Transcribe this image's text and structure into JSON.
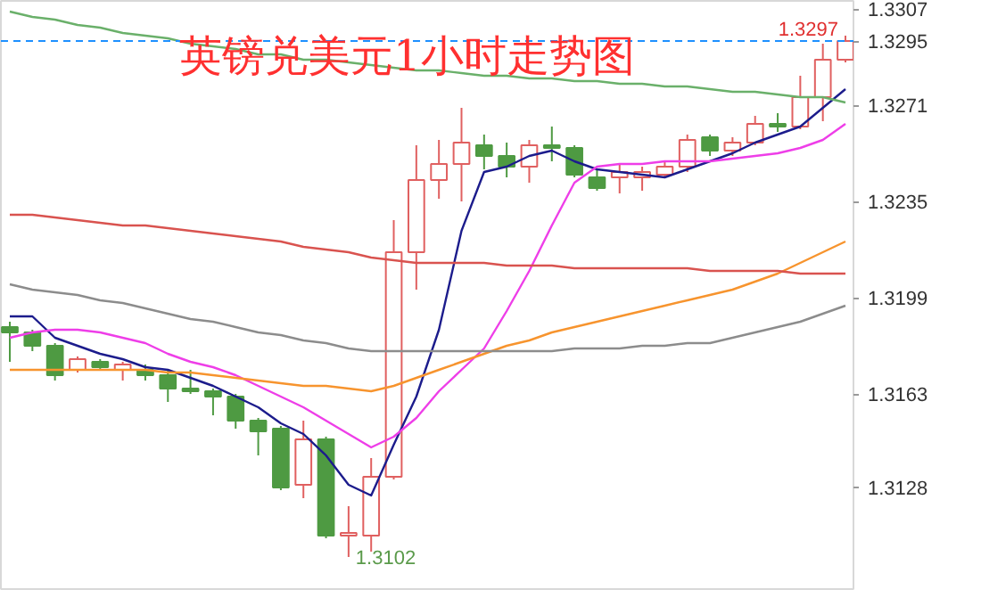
{
  "chart_data": {
    "type": "candlestick",
    "title": "英镑兑美元1小时走势图",
    "categories": [
      null,
      null,
      null,
      null,
      null,
      null,
      null,
      null,
      null,
      null,
      null,
      null,
      null,
      null,
      null,
      null,
      null,
      null,
      null,
      null,
      null,
      null,
      null,
      null,
      null,
      null,
      null,
      null,
      null,
      null,
      null,
      null,
      null,
      null,
      null,
      null,
      null,
      null
    ],
    "ohlc": [
      [
        1.3188,
        1.319,
        1.3175,
        1.3186
      ],
      [
        1.3186,
        1.3187,
        1.3179,
        1.3181
      ],
      [
        1.3181,
        1.3182,
        1.3168,
        1.317
      ],
      [
        1.3172,
        1.3177,
        1.3171,
        1.3176
      ],
      [
        1.3175,
        1.3176,
        1.3172,
        1.3173
      ],
      [
        1.3172,
        1.3175,
        1.3168,
        1.3174
      ],
      [
        1.3172,
        1.3174,
        1.3168,
        1.317
      ],
      [
        1.317,
        1.3172,
        1.316,
        1.3165
      ],
      [
        1.3165,
        1.3172,
        1.3163,
        1.3164
      ],
      [
        1.3164,
        1.3165,
        1.3155,
        1.3162
      ],
      [
        1.3162,
        1.3163,
        1.315,
        1.3153
      ],
      [
        1.3153,
        1.3154,
        1.314,
        1.3149
      ],
      [
        1.315,
        1.3151,
        1.3127,
        1.3128
      ],
      [
        1.3129,
        1.3153,
        1.3124,
        1.3146
      ],
      [
        1.3146,
        1.3147,
        1.3109,
        1.311
      ],
      [
        1.311,
        1.3121,
        1.3102,
        1.3111
      ],
      [
        1.311,
        1.3139,
        1.3104,
        1.3132
      ],
      [
        1.3132,
        1.3228,
        1.3131,
        1.3216
      ],
      [
        1.3216,
        1.3256,
        1.3202,
        1.3243
      ],
      [
        1.3243,
        1.3258,
        1.3236,
        1.3249
      ],
      [
        1.3249,
        1.327,
        1.3235,
        1.3257
      ],
      [
        1.3256,
        1.326,
        1.3247,
        1.3252
      ],
      [
        1.3252,
        1.3257,
        1.3244,
        1.3248
      ],
      [
        1.3248,
        1.3258,
        1.3242,
        1.3256
      ],
      [
        1.3256,
        1.3263,
        1.325,
        1.3255
      ],
      [
        1.3255,
        1.3256,
        1.3244,
        1.3245
      ],
      [
        1.3244,
        1.3247,
        1.3239,
        1.324
      ],
      [
        1.3244,
        1.3249,
        1.3238,
        1.3246
      ],
      [
        1.3244,
        1.3248,
        1.3239,
        1.3246
      ],
      [
        1.3245,
        1.325,
        1.3244,
        1.3248
      ],
      [
        1.3248,
        1.326,
        1.3246,
        1.3258
      ],
      [
        1.3259,
        1.326,
        1.3252,
        1.3254
      ],
      [
        1.3254,
        1.3259,
        1.3252,
        1.3257
      ],
      [
        1.3257,
        1.3267,
        1.3256,
        1.3264
      ],
      [
        1.3264,
        1.3268,
        1.3261,
        1.3263
      ],
      [
        1.3263,
        1.3282,
        1.3262,
        1.3274
      ],
      [
        1.3274,
        1.3294,
        1.3265,
        1.3288
      ],
      [
        1.3288,
        1.3297,
        1.3287,
        1.3295
      ]
    ],
    "colors": [
      "#4e9a42",
      "#4e9a42",
      "#4e9a42",
      "#e06060",
      "#4e9a42",
      "#e06060",
      "#4e9a42",
      "#4e9a42",
      "#4e9a42",
      "#4e9a42",
      "#4e9a42",
      "#4e9a42",
      "#4e9a42",
      "#e06060",
      "#4e9a42",
      "#e06060",
      "#e06060",
      "#e06060",
      "#e06060",
      "#e06060",
      "#e06060",
      "#4e9a42",
      "#4e9a42",
      "#e06060",
      "#4e9a42",
      "#4e9a42",
      "#4e9a42",
      "#e06060",
      "#e06060",
      "#e06060",
      "#e06060",
      "#4e9a42",
      "#e06060",
      "#e06060",
      "#4e9a42",
      "#e06060",
      "#e06060",
      "#e06060"
    ],
    "series": [
      {
        "type": "line",
        "color": "#1c1c8c",
        "values": [
          1.3192,
          1.3192,
          1.3184,
          1.3181,
          1.3178,
          1.3176,
          1.3173,
          1.3172,
          1.3169,
          1.3166,
          1.3162,
          1.3158,
          1.3152,
          1.3148,
          1.314,
          1.3129,
          1.3125,
          1.3144,
          1.3162,
          1.3187,
          1.3224,
          1.3246,
          1.3248,
          1.3252,
          1.3254,
          1.325,
          1.3247,
          1.3246,
          1.3245,
          1.3244,
          1.3247,
          1.325,
          1.3253,
          1.3257,
          1.326,
          1.3263,
          1.327,
          1.3277
        ]
      },
      {
        "type": "line",
        "color": "#ee3ee8",
        "values": [
          1.3184,
          1.3186,
          1.3187,
          1.3187,
          1.3186,
          1.3184,
          1.3182,
          1.3178,
          1.3175,
          1.3173,
          1.317,
          1.3166,
          1.3162,
          1.3158,
          1.3153,
          1.3148,
          1.3143,
          1.3147,
          1.3154,
          1.3164,
          1.3172,
          1.318,
          1.3194,
          1.3209,
          1.3226,
          1.3242,
          1.3248,
          1.3249,
          1.3249,
          1.325,
          1.325,
          1.325,
          1.3251,
          1.3252,
          1.3253,
          1.3255,
          1.3258,
          1.3264
        ]
      },
      {
        "type": "line",
        "color": "#f7942e",
        "values": [
          1.3172,
          1.3172,
          1.3172,
          1.3172,
          1.3172,
          1.3172,
          1.3172,
          1.3171,
          1.3171,
          1.317,
          1.3169,
          1.3168,
          1.3167,
          1.3166,
          1.3166,
          1.3165,
          1.3164,
          1.3166,
          1.3169,
          1.3172,
          1.3175,
          1.3178,
          1.3181,
          1.3183,
          1.3186,
          1.3188,
          1.319,
          1.3192,
          1.3194,
          1.3196,
          1.3198,
          1.32,
          1.3202,
          1.3205,
          1.3208,
          1.3212,
          1.3216,
          1.322
        ]
      },
      {
        "type": "line",
        "color": "#d9534f",
        "values": [
          1.323,
          1.323,
          1.3229,
          1.3228,
          1.3227,
          1.3226,
          1.3226,
          1.3225,
          1.3224,
          1.3223,
          1.3222,
          1.3221,
          1.322,
          1.3218,
          1.3217,
          1.3216,
          1.3214,
          1.3213,
          1.3212,
          1.3212,
          1.3212,
          1.3212,
          1.3211,
          1.3211,
          1.3211,
          1.321,
          1.321,
          1.321,
          1.321,
          1.321,
          1.321,
          1.3209,
          1.3209,
          1.3209,
          1.3209,
          1.3208,
          1.3208,
          1.3208
        ]
      },
      {
        "type": "line",
        "color": "#8c8c8c",
        "values": [
          1.3204,
          1.3202,
          1.3201,
          1.32,
          1.3198,
          1.3197,
          1.3195,
          1.3193,
          1.3191,
          1.319,
          1.3188,
          1.3186,
          1.3185,
          1.3183,
          1.3182,
          1.318,
          1.3179,
          1.3179,
          1.3179,
          1.3179,
          1.3179,
          1.3179,
          1.3179,
          1.3179,
          1.3179,
          1.318,
          1.318,
          1.318,
          1.3181,
          1.3181,
          1.3182,
          1.3182,
          1.3184,
          1.3186,
          1.3188,
          1.319,
          1.3193,
          1.3196
        ]
      },
      {
        "type": "line",
        "color": "#6ab06a",
        "values": [
          1.3306,
          1.3304,
          1.3303,
          1.3301,
          1.33,
          1.3298,
          1.3297,
          1.3296,
          1.3294,
          1.3293,
          1.3292,
          1.329,
          1.329,
          1.3288,
          1.3288,
          1.3287,
          1.3286,
          1.3285,
          1.3284,
          1.3284,
          1.3283,
          1.3282,
          1.3282,
          1.3281,
          1.3281,
          1.328,
          1.328,
          1.3279,
          1.3279,
          1.3278,
          1.3278,
          1.3277,
          1.3276,
          1.3276,
          1.3275,
          1.3274,
          1.3274,
          1.3272
        ]
      }
    ],
    "ylim": [
      1.309,
      1.331
    ],
    "yticks": [
      1.3307,
      1.3271,
      1.3235,
      1.3199,
      1.3163,
      1.3128
    ],
    "ref_lines": [
      {
        "axis": "y",
        "value": 1.3295,
        "label": "1.3295",
        "color": "#1e90ff",
        "line_style": "dashed"
      }
    ],
    "annotations": [
      "1.3297",
      "1.3102"
    ],
    "tick_labels": "y",
    "grid": false
  }
}
